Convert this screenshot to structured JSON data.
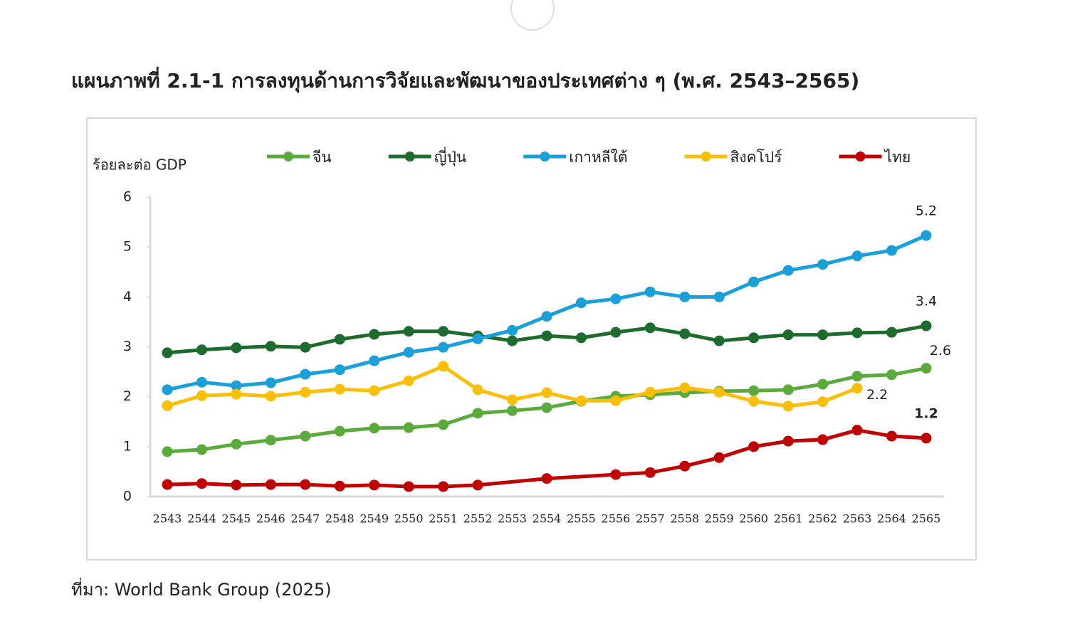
{
  "chart_data": {
    "type": "line",
    "title": "แผนภาพที่ 2.1-1 การลงทุนด้านการวิจัยและพัฒนาของประเทศต่าง ๆ (พ.ศ. 2543–2565)",
    "y_label": "ร้อยละต่อ GDP",
    "categories": [
      "2543",
      "2544",
      "2545",
      "2546",
      "2547",
      "2548",
      "2549",
      "2550",
      "2551",
      "2552",
      "2553",
      "2554",
      "2555",
      "2556",
      "2557",
      "2558",
      "2559",
      "2560",
      "2561",
      "2562",
      "2563",
      "2564",
      "2565"
    ],
    "ylim": [
      0,
      6
    ],
    "yticks": [
      0,
      1,
      2,
      3,
      4,
      5,
      6
    ],
    "grid": false,
    "legend": "top",
    "series": [
      {
        "name": "จีน",
        "color": "#5aab3c",
        "values": [
          0.9,
          0.94,
          1.05,
          1.13,
          1.21,
          1.31,
          1.37,
          1.38,
          1.44,
          1.67,
          1.72,
          1.78,
          1.91,
          2.01,
          2.04,
          2.08,
          2.11,
          2.12,
          2.14,
          2.25,
          2.41,
          2.44,
          2.57
        ],
        "value_labels": [
          null,
          null,
          null,
          null,
          null,
          null,
          null,
          null,
          null,
          null,
          null,
          null,
          null,
          null,
          null,
          null,
          null,
          null,
          null,
          null,
          null,
          null,
          "2.6"
        ]
      },
      {
        "name": "ญี่ปุ่น",
        "color": "#1e6b2e",
        "values": [
          2.88,
          2.94,
          2.98,
          3.01,
          2.99,
          3.15,
          3.25,
          3.31,
          3.31,
          3.22,
          3.12,
          3.22,
          3.18,
          3.29,
          3.38,
          3.26,
          3.12,
          3.18,
          3.24,
          3.24,
          3.28,
          3.29,
          3.42
        ],
        "value_labels": [
          null,
          null,
          null,
          null,
          null,
          null,
          null,
          null,
          null,
          null,
          null,
          null,
          null,
          null,
          null,
          null,
          null,
          null,
          null,
          null,
          null,
          null,
          "3.4"
        ]
      },
      {
        "name": "เกาหลีใต้",
        "color": "#1a9fd8",
        "values": [
          2.14,
          2.29,
          2.22,
          2.28,
          2.45,
          2.54,
          2.72,
          2.89,
          2.99,
          3.16,
          3.33,
          3.61,
          3.88,
          3.96,
          4.1,
          4.0,
          4.0,
          4.3,
          4.53,
          4.65,
          4.82,
          4.93,
          5.23
        ],
        "value_labels": [
          null,
          null,
          null,
          null,
          null,
          null,
          null,
          null,
          null,
          null,
          null,
          null,
          null,
          null,
          null,
          null,
          null,
          null,
          null,
          null,
          null,
          null,
          "5.2"
        ]
      },
      {
        "name": "สิงคโปร์",
        "color": "#fbbf0a",
        "values": [
          1.82,
          2.02,
          2.05,
          2.01,
          2.09,
          2.15,
          2.12,
          2.32,
          2.61,
          2.14,
          1.94,
          2.08,
          1.92,
          1.92,
          2.09,
          2.18,
          2.09,
          1.91,
          1.81,
          1.9,
          2.17,
          null,
          null
        ],
        "value_labels": [
          null,
          null,
          null,
          null,
          null,
          null,
          null,
          null,
          null,
          null,
          null,
          null,
          null,
          null,
          null,
          null,
          null,
          null,
          null,
          null,
          "2.2",
          null,
          null
        ]
      },
      {
        "name": "ไทย",
        "color": "#c00000",
        "values": [
          0.24,
          0.26,
          0.23,
          0.24,
          0.24,
          0.21,
          0.23,
          0.2,
          0.2,
          0.23,
          null,
          0.36,
          null,
          0.44,
          0.48,
          0.61,
          0.78,
          1.0,
          1.11,
          1.14,
          1.33,
          1.21,
          1.17
        ],
        "value_labels": [
          null,
          null,
          null,
          null,
          null,
          null,
          null,
          null,
          null,
          null,
          null,
          null,
          null,
          null,
          null,
          null,
          null,
          null,
          null,
          null,
          null,
          null,
          "1.2"
        ]
      }
    ]
  },
  "source": "ที่มา: World Bank Group (2025)"
}
